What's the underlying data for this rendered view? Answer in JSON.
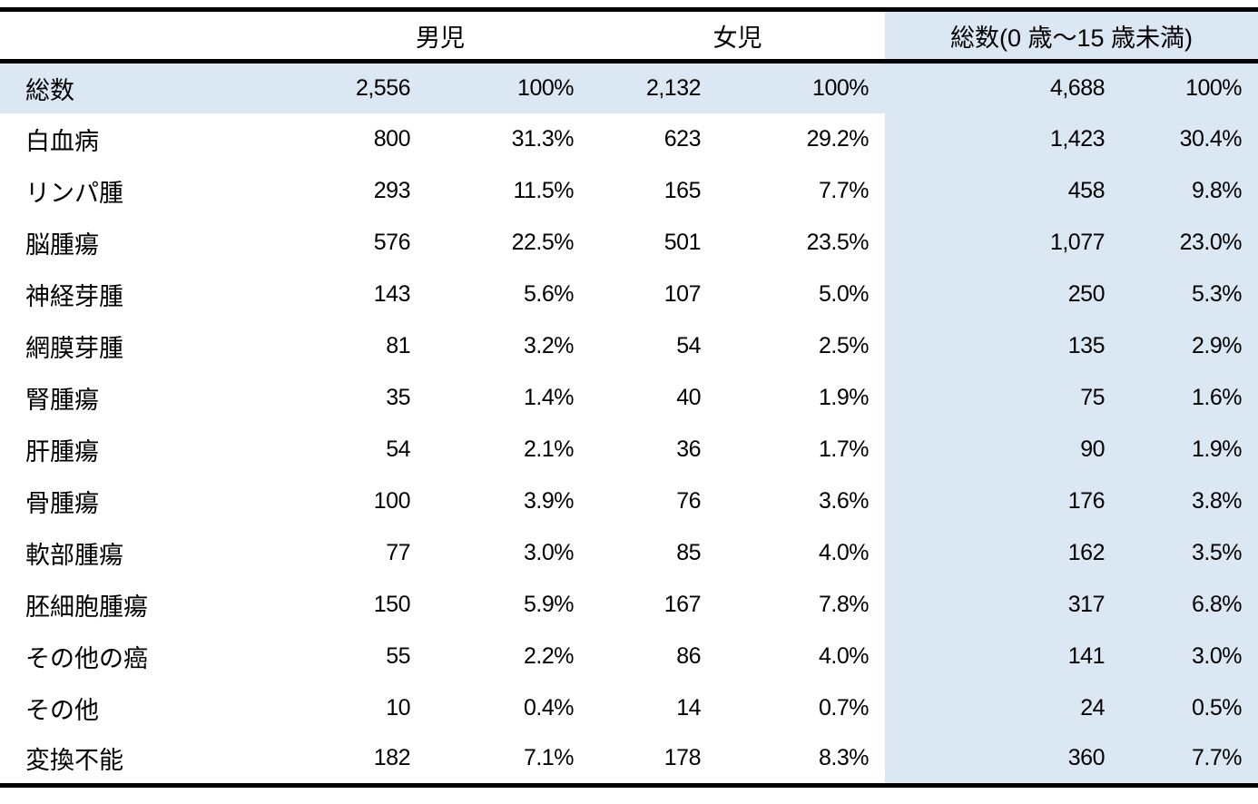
{
  "colors": {
    "highlight_bg": "#dbe7f3",
    "border": "#000000",
    "page_bg": "#ffffff"
  },
  "table": {
    "corner_label": "",
    "column_groups": [
      {
        "label": "男児"
      },
      {
        "label": "女児"
      },
      {
        "label": "総数(0 歳～15 歳未満)"
      }
    ],
    "highlight_row_index": 0,
    "rows": [
      {
        "label": "総数",
        "values": [
          "2,556",
          "100%",
          "2,132",
          "100%",
          "4,688",
          "100%"
        ]
      },
      {
        "label": "白血病",
        "values": [
          "800",
          "31.3%",
          "623",
          "29.2%",
          "1,423",
          "30.4%"
        ]
      },
      {
        "label": "リンパ腫",
        "values": [
          "293",
          "11.5%",
          "165",
          "7.7%",
          "458",
          "9.8%"
        ]
      },
      {
        "label": "脳腫瘍",
        "values": [
          "576",
          "22.5%",
          "501",
          "23.5%",
          "1,077",
          "23.0%"
        ]
      },
      {
        "label": "神経芽腫",
        "values": [
          "143",
          "5.6%",
          "107",
          "5.0%",
          "250",
          "5.3%"
        ]
      },
      {
        "label": "網膜芽腫",
        "values": [
          "81",
          "3.2%",
          "54",
          "2.5%",
          "135",
          "2.9%"
        ]
      },
      {
        "label": "腎腫瘍",
        "values": [
          "35",
          "1.4%",
          "40",
          "1.9%",
          "75",
          "1.6%"
        ]
      },
      {
        "label": "肝腫瘍",
        "values": [
          "54",
          "2.1%",
          "36",
          "1.7%",
          "90",
          "1.9%"
        ]
      },
      {
        "label": "骨腫瘍",
        "values": [
          "100",
          "3.9%",
          "76",
          "3.6%",
          "176",
          "3.8%"
        ]
      },
      {
        "label": "軟部腫瘍",
        "values": [
          "77",
          "3.0%",
          "85",
          "4.0%",
          "162",
          "3.5%"
        ]
      },
      {
        "label": "胚細胞腫瘍",
        "values": [
          "150",
          "5.9%",
          "167",
          "7.8%",
          "317",
          "6.8%"
        ]
      },
      {
        "label": "その他の癌",
        "values": [
          "55",
          "2.2%",
          "86",
          "4.0%",
          "141",
          "3.0%"
        ]
      },
      {
        "label": "その他",
        "values": [
          "10",
          "0.4%",
          "14",
          "0.7%",
          "24",
          "0.5%"
        ]
      },
      {
        "label": "変換不能",
        "values": [
          "182",
          "7.1%",
          "178",
          "8.3%",
          "360",
          "7.7%"
        ]
      }
    ]
  },
  "chart_data": {
    "type": "table",
    "title": "",
    "column_headers": [
      "",
      "男児 件数",
      "男児 %",
      "女児 件数",
      "女児 %",
      "総数(0 歳～15 歳未満) 件数",
      "総数(0 歳～15 歳未満) %"
    ],
    "rows": [
      [
        "総数",
        2556,
        "100%",
        2132,
        "100%",
        4688,
        "100%"
      ],
      [
        "白血病",
        800,
        "31.3%",
        623,
        "29.2%",
        1423,
        "30.4%"
      ],
      [
        "リンパ腫",
        293,
        "11.5%",
        165,
        "7.7%",
        458,
        "9.8%"
      ],
      [
        "脳腫瘍",
        576,
        "22.5%",
        501,
        "23.5%",
        1077,
        "23.0%"
      ],
      [
        "神経芽腫",
        143,
        "5.6%",
        107,
        "5.0%",
        250,
        "5.3%"
      ],
      [
        "網膜芽腫",
        81,
        "3.2%",
        54,
        "2.5%",
        135,
        "2.9%"
      ],
      [
        "腎腫瘍",
        35,
        "1.4%",
        40,
        "1.9%",
        75,
        "1.6%"
      ],
      [
        "肝腫瘍",
        54,
        "2.1%",
        36,
        "1.7%",
        90,
        "1.9%"
      ],
      [
        "骨腫瘍",
        100,
        "3.9%",
        76,
        "3.6%",
        176,
        "3.8%"
      ],
      [
        "軟部腫瘍",
        77,
        "3.0%",
        85,
        "4.0%",
        162,
        "3.5%"
      ],
      [
        "胚細胞腫瘍",
        150,
        "5.9%",
        167,
        "7.8%",
        317,
        "6.8%"
      ],
      [
        "その他の癌",
        55,
        "2.2%",
        86,
        "4.0%",
        141,
        "3.0%"
      ],
      [
        "その他",
        10,
        "0.4%",
        14,
        "0.7%",
        24,
        "0.5%"
      ],
      [
        "変換不能",
        182,
        "7.1%",
        178,
        "8.3%",
        360,
        "7.7%"
      ]
    ]
  }
}
